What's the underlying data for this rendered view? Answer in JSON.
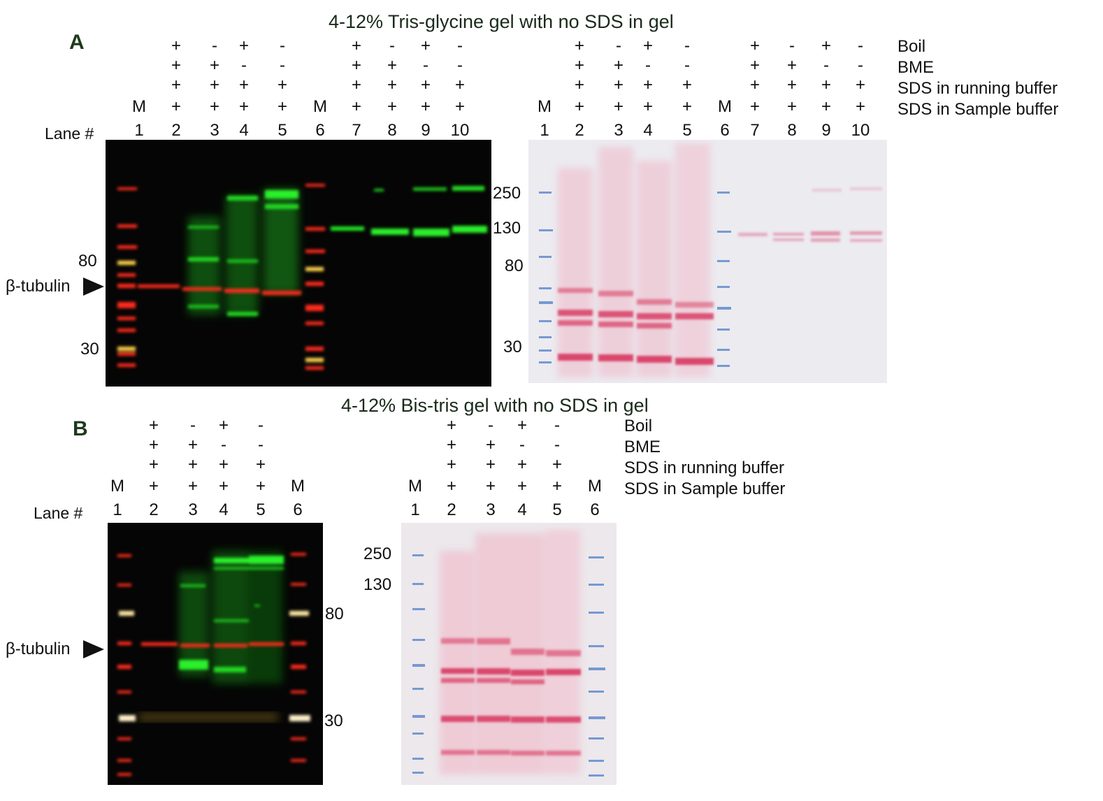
{
  "panelA": {
    "title": "4-12% Tris-glycine gel with no SDS in gel",
    "letter": "A",
    "lane_header": "Lane #",
    "row_labels": [
      "Boil",
      "BME",
      "SDS in running buffer",
      "SDS in Sample buffer"
    ],
    "left_blot": {
      "lanes": [
        "1",
        "2",
        "3",
        "4",
        "5",
        "6",
        "7",
        "8",
        "9",
        "10"
      ],
      "markers": [
        "M",
        "",
        "",
        "",
        "",
        "M",
        "",
        "",
        "",
        ""
      ],
      "boil": [
        "",
        "+",
        "-",
        "+",
        "-",
        "",
        "+",
        "-",
        "+",
        "-"
      ],
      "bme": [
        "",
        "+",
        "+",
        "-",
        "-",
        "",
        "+",
        "+",
        "-",
        "-"
      ],
      "sds_running": [
        "",
        "+",
        "+",
        "+",
        "+",
        "",
        "+",
        "+",
        "+",
        "+"
      ],
      "sds_sample": [
        "",
        "+",
        "+",
        "+",
        "+",
        "",
        "+",
        "+",
        "+",
        "+"
      ],
      "mw_labels": [
        "80",
        "30"
      ],
      "mw_labels_right": [
        "250",
        "130"
      ],
      "band_label": "β-tubulin"
    },
    "right_blot": {
      "lanes": [
        "1",
        "2",
        "3",
        "4",
        "5",
        "6",
        "7",
        "8",
        "9",
        "10"
      ],
      "markers": [
        "M",
        "",
        "",
        "",
        "",
        "M",
        "",
        "",
        "",
        ""
      ],
      "boil": [
        "",
        "+",
        "-",
        "+",
        "-",
        "",
        "+",
        "-",
        "+",
        "-"
      ],
      "bme": [
        "",
        "+",
        "+",
        "-",
        "-",
        "",
        "+",
        "+",
        "-",
        "-"
      ],
      "sds_running": [
        "",
        "+",
        "+",
        "+",
        "+",
        "",
        "+",
        "+",
        "+",
        "+"
      ],
      "sds_sample": [
        "",
        "+",
        "+",
        "+",
        "+",
        "",
        "+",
        "+",
        "+",
        "+"
      ],
      "mw_labels": [
        "80",
        "30"
      ]
    }
  },
  "panelB": {
    "title": "4-12% Bis-tris gel with no SDS in gel",
    "letter": "B",
    "lane_header": "Lane #",
    "row_labels": [
      "Boil",
      "BME",
      "SDS in running buffer",
      "SDS in Sample buffer"
    ],
    "left_blot": {
      "lanes": [
        "1",
        "2",
        "3",
        "4",
        "5",
        "6"
      ],
      "markers": [
        "M",
        "",
        "",
        "",
        "",
        "M"
      ],
      "boil": [
        "",
        "+",
        "-",
        "+",
        "-",
        ""
      ],
      "bme": [
        "",
        "+",
        "+",
        "-",
        "-",
        ""
      ],
      "sds_running": [
        "",
        "+",
        "+",
        "+",
        "+",
        ""
      ],
      "sds_sample": [
        "",
        "+",
        "+",
        "+",
        "+",
        ""
      ],
      "mw_labels": [
        "80",
        "30"
      ],
      "band_label": "β-tubulin"
    },
    "right_blot": {
      "lanes": [
        "1",
        "2",
        "3",
        "4",
        "5",
        "6"
      ],
      "markers": [
        "M",
        "",
        "",
        "",
        "",
        "M"
      ],
      "boil": [
        "",
        "+",
        "-",
        "+",
        "-",
        ""
      ],
      "bme": [
        "",
        "+",
        "+",
        "-",
        "-",
        ""
      ],
      "sds_running": [
        "",
        "+",
        "+",
        "+",
        "+",
        ""
      ],
      "sds_sample": [
        "",
        "+",
        "+",
        "+",
        "+",
        ""
      ],
      "mw_labels": [
        "250",
        "130"
      ]
    }
  },
  "colors": {
    "fluor_background": "#050505",
    "fluor_red": "#ff2a1a",
    "fluor_green": "#22e822",
    "fluor_yellow": "#ffd24a",
    "ponceau_background": "#ecebf0",
    "ponceau_pink": "#d8365f",
    "marker_blue": "#4f7fc8"
  }
}
